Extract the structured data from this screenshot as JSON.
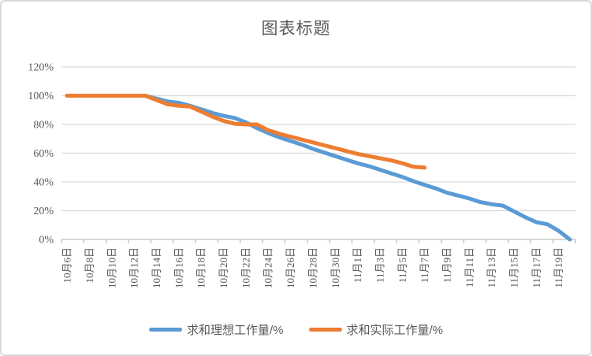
{
  "chart_data": {
    "type": "line",
    "title": "图表标题",
    "categories": [
      "10月6日",
      "10月7日",
      "10月8日",
      "10月9日",
      "10月10日",
      "10月11日",
      "10月12日",
      "10月13日",
      "10月14日",
      "10月15日",
      "10月16日",
      "10月17日",
      "10月18日",
      "10月19日",
      "10月20日",
      "10月21日",
      "10月22日",
      "10月23日",
      "10月24日",
      "10月25日",
      "10月26日",
      "10月27日",
      "10月28日",
      "10月29日",
      "10月30日",
      "10月31日",
      "11月1日",
      "11月2日",
      "11月3日",
      "11月4日",
      "11月5日",
      "11月6日",
      "11月7日",
      "11月8日",
      "11月9日",
      "11月10日",
      "11月11日",
      "11月12日",
      "11月13日",
      "11月14日",
      "11月15日",
      "11月16日",
      "11月17日",
      "11月18日",
      "11月19日",
      "11月20日"
    ],
    "x_label_interval": 2,
    "series": [
      {
        "name": "求和理想工作量/%",
        "color": "#5B9BD5",
        "values": [
          100,
          100,
          100,
          100,
          100,
          100,
          100,
          100,
          98,
          96,
          95,
          93,
          90.5,
          88,
          86,
          84.5,
          81.5,
          77.5,
          74,
          71,
          68.5,
          66,
          63,
          60.5,
          58,
          55.5,
          53,
          51,
          48.5,
          46,
          43.5,
          40.5,
          38,
          35.5,
          32.5,
          30.5,
          28.5,
          26,
          24.5,
          23.5,
          19.5,
          15.5,
          12,
          10.5,
          6,
          0
        ]
      },
      {
        "name": "求和实际工作量/%",
        "color": "#ED7D31",
        "values": [
          100,
          100,
          100,
          100,
          100,
          100,
          100,
          100,
          97,
          94,
          93,
          92.5,
          89,
          85.5,
          82.5,
          80.5,
          80,
          80,
          76,
          73.5,
          71.5,
          69.5,
          67.5,
          65.5,
          63.5,
          61.5,
          59.5,
          58,
          56.5,
          55,
          53,
          50.5,
          50
        ]
      }
    ],
    "ylim": [
      0,
      120
    ],
    "y_ticks": [
      0,
      20,
      40,
      60,
      80,
      100,
      120
    ],
    "y_tick_suffix": "%",
    "grid": "horizontal",
    "legend_position": "bottom",
    "colors": {
      "grid": "#D9D9D9",
      "axis": "#BFBFBF",
      "text": "#595959",
      "title": "#595959",
      "border": "#D9D9D9",
      "background": "#FFFFFF"
    }
  }
}
